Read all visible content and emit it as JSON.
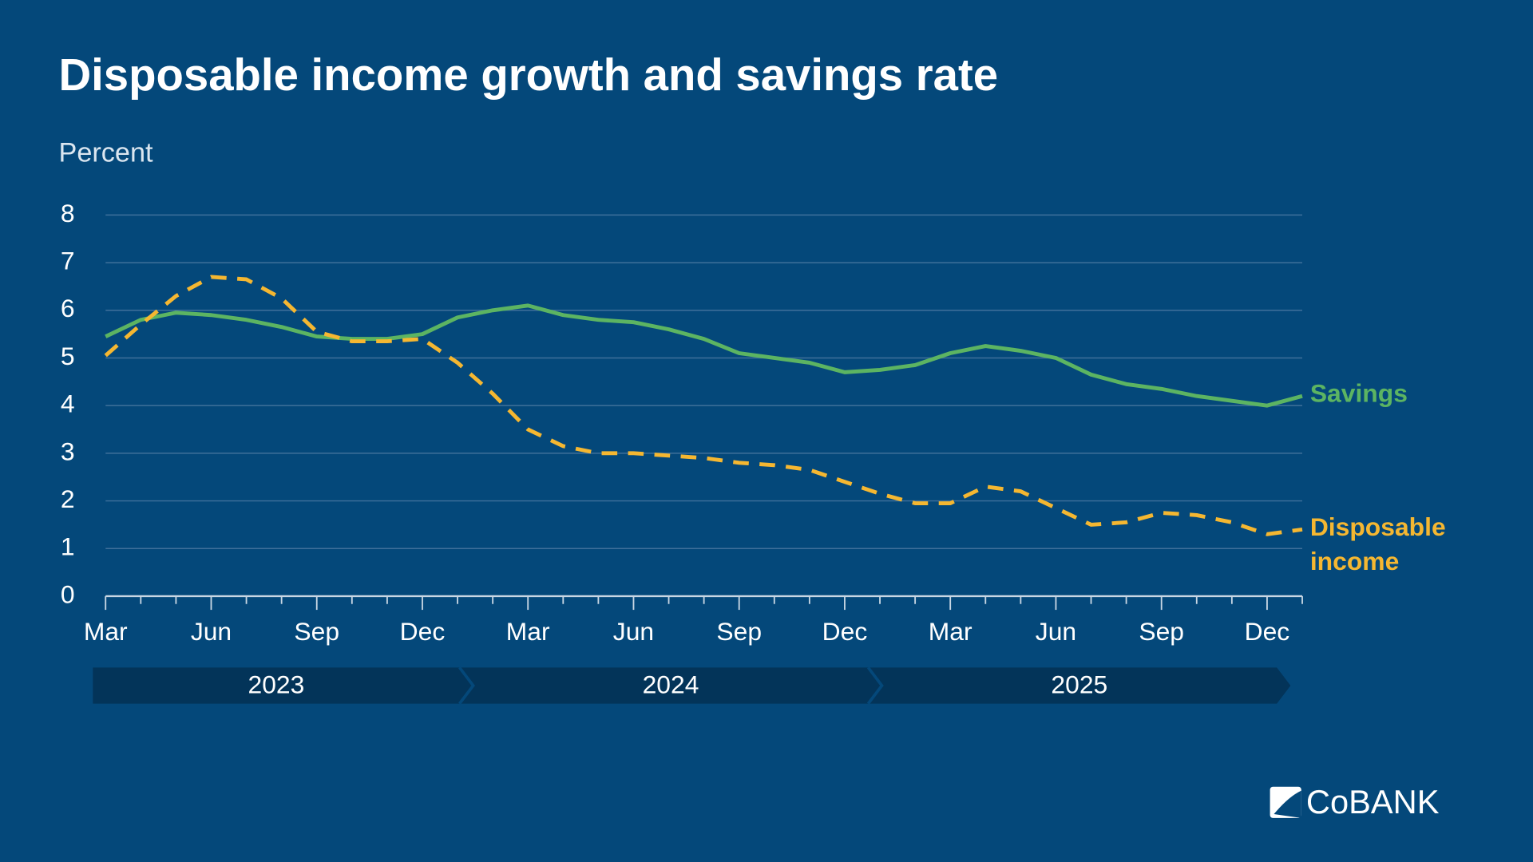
{
  "chart_data": {
    "type": "line",
    "title": "Disposable income growth and savings rate",
    "subtitle": "Percent",
    "categories": [
      "Mar",
      null,
      null,
      "Jun",
      null,
      null,
      "Sep",
      null,
      null,
      "Dec",
      null,
      null,
      "Mar",
      null,
      null,
      "Jun",
      null,
      null,
      "Sep",
      null,
      null,
      "Dec",
      null,
      null,
      "Mar",
      null,
      null,
      "Jun",
      null,
      null,
      "Sep",
      null,
      null,
      "Dec",
      null
    ],
    "years": [
      "2023",
      "2024",
      "2025"
    ],
    "series": [
      {
        "name": "Savings",
        "color": "#5cb462",
        "dashed": false,
        "values": [
          5.45,
          5.8,
          5.95,
          5.9,
          5.8,
          5.65,
          5.45,
          5.4,
          5.4,
          5.5,
          5.85,
          6.0,
          6.1,
          5.9,
          5.8,
          5.75,
          5.6,
          5.4,
          5.1,
          5.0,
          4.9,
          4.7,
          4.75,
          4.85,
          5.1,
          5.25,
          5.15,
          5.0,
          4.65,
          4.45,
          4.35,
          4.2,
          4.1,
          4.0,
          4.2
        ]
      },
      {
        "name": "Disposable income",
        "color": "#f5b731",
        "dashed": true,
        "values": [
          5.05,
          5.7,
          6.3,
          6.7,
          6.65,
          6.25,
          5.55,
          5.35,
          5.35,
          5.4,
          4.9,
          4.25,
          3.5,
          3.15,
          3.0,
          3.0,
          2.95,
          2.9,
          2.8,
          2.75,
          2.65,
          2.4,
          2.15,
          1.95,
          1.95,
          2.3,
          2.2,
          1.85,
          1.5,
          1.55,
          1.75,
          1.7,
          1.55,
          1.3,
          1.4
        ]
      }
    ],
    "ylim": [
      0,
      8
    ],
    "yticks": [
      0,
      1,
      2,
      3,
      4,
      5,
      6,
      7,
      8
    ],
    "grid": true
  },
  "logo": "CoBANK"
}
